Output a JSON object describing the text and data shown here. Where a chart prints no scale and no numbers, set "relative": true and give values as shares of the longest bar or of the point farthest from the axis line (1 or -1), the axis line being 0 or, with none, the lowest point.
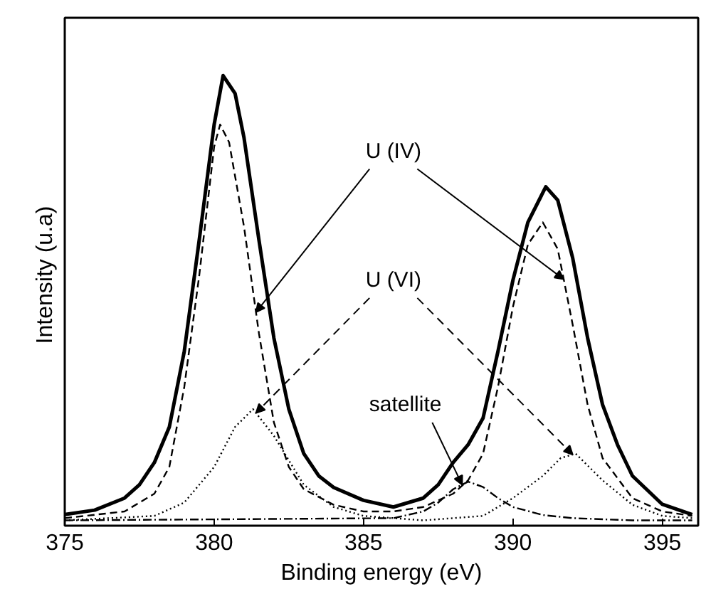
{
  "chart_data": {
    "type": "line",
    "relative": true,
    "xlabel": "Binding energy (eV)",
    "ylabel": "Intensity  (u.a)",
    "xlim": [
      375,
      396.2
    ],
    "xticks": [
      375,
      380,
      385,
      390,
      395
    ],
    "grid": false,
    "annotations": [
      "U (IV)",
      "U (VI)",
      "satellite"
    ],
    "series": [
      {
        "color": "#000000",
        "line_style": "solid",
        "x": [
          375,
          376,
          377,
          377.5,
          378,
          378.5,
          379,
          379.5,
          380,
          380.3,
          380.7,
          381,
          381.5,
          382,
          382.5,
          383,
          383.5,
          384,
          385,
          386,
          387,
          387.5,
          388,
          388.5,
          389,
          389.5,
          390,
          390.5,
          391.1,
          391.5,
          392,
          392.5,
          393,
          393.5,
          394,
          395,
          396
        ],
        "values": [
          0.013,
          0.023,
          0.05,
          0.08,
          0.13,
          0.21,
          0.38,
          0.63,
          0.89,
          1.0,
          0.96,
          0.86,
          0.63,
          0.41,
          0.25,
          0.15,
          0.1,
          0.074,
          0.045,
          0.03,
          0.05,
          0.08,
          0.13,
          0.17,
          0.23,
          0.38,
          0.54,
          0.67,
          0.75,
          0.72,
          0.59,
          0.41,
          0.26,
          0.17,
          0.1,
          0.036,
          0.013
        ]
      },
      {
        "color": "#000000",
        "line_style": "dashed",
        "x": [
          375,
          377,
          378,
          378.5,
          379,
          379.5,
          380,
          380.2,
          380.5,
          381,
          381.5,
          382,
          382.5,
          383,
          384,
          385,
          386,
          387,
          388,
          388.5,
          389,
          389.5,
          390,
          390.5,
          391,
          391.5,
          392,
          392.5,
          393,
          394,
          395,
          396
        ],
        "values": [
          0.005,
          0.02,
          0.06,
          0.12,
          0.3,
          0.55,
          0.84,
          0.89,
          0.85,
          0.66,
          0.42,
          0.22,
          0.12,
          0.07,
          0.035,
          0.02,
          0.02,
          0.03,
          0.06,
          0.09,
          0.15,
          0.3,
          0.48,
          0.62,
          0.67,
          0.61,
          0.44,
          0.26,
          0.14,
          0.05,
          0.02,
          0.01
        ]
      },
      {
        "color": "#000000",
        "line_style": "dotted",
        "x": [
          375,
          378,
          379,
          380,
          380.7,
          381.3,
          382,
          383,
          384,
          385,
          387,
          388,
          389,
          390,
          391,
          391.6,
          392.1,
          393,
          394,
          395,
          396
        ],
        "values": [
          0,
          0.01,
          0.04,
          0.12,
          0.21,
          0.25,
          0.19,
          0.08,
          0.03,
          0.01,
          0,
          0.005,
          0.01,
          0.05,
          0.1,
          0.14,
          0.15,
          0.09,
          0.035,
          0.01,
          0.005
        ]
      },
      {
        "color": "#000000",
        "line_style": "dashdot",
        "x": [
          375,
          386,
          387,
          387.5,
          388,
          388.5,
          389,
          389.5,
          390,
          391,
          392,
          394,
          396
        ],
        "values": [
          0,
          0.005,
          0.02,
          0.04,
          0.07,
          0.087,
          0.075,
          0.05,
          0.03,
          0.012,
          0.005,
          0,
          0
        ]
      }
    ]
  }
}
